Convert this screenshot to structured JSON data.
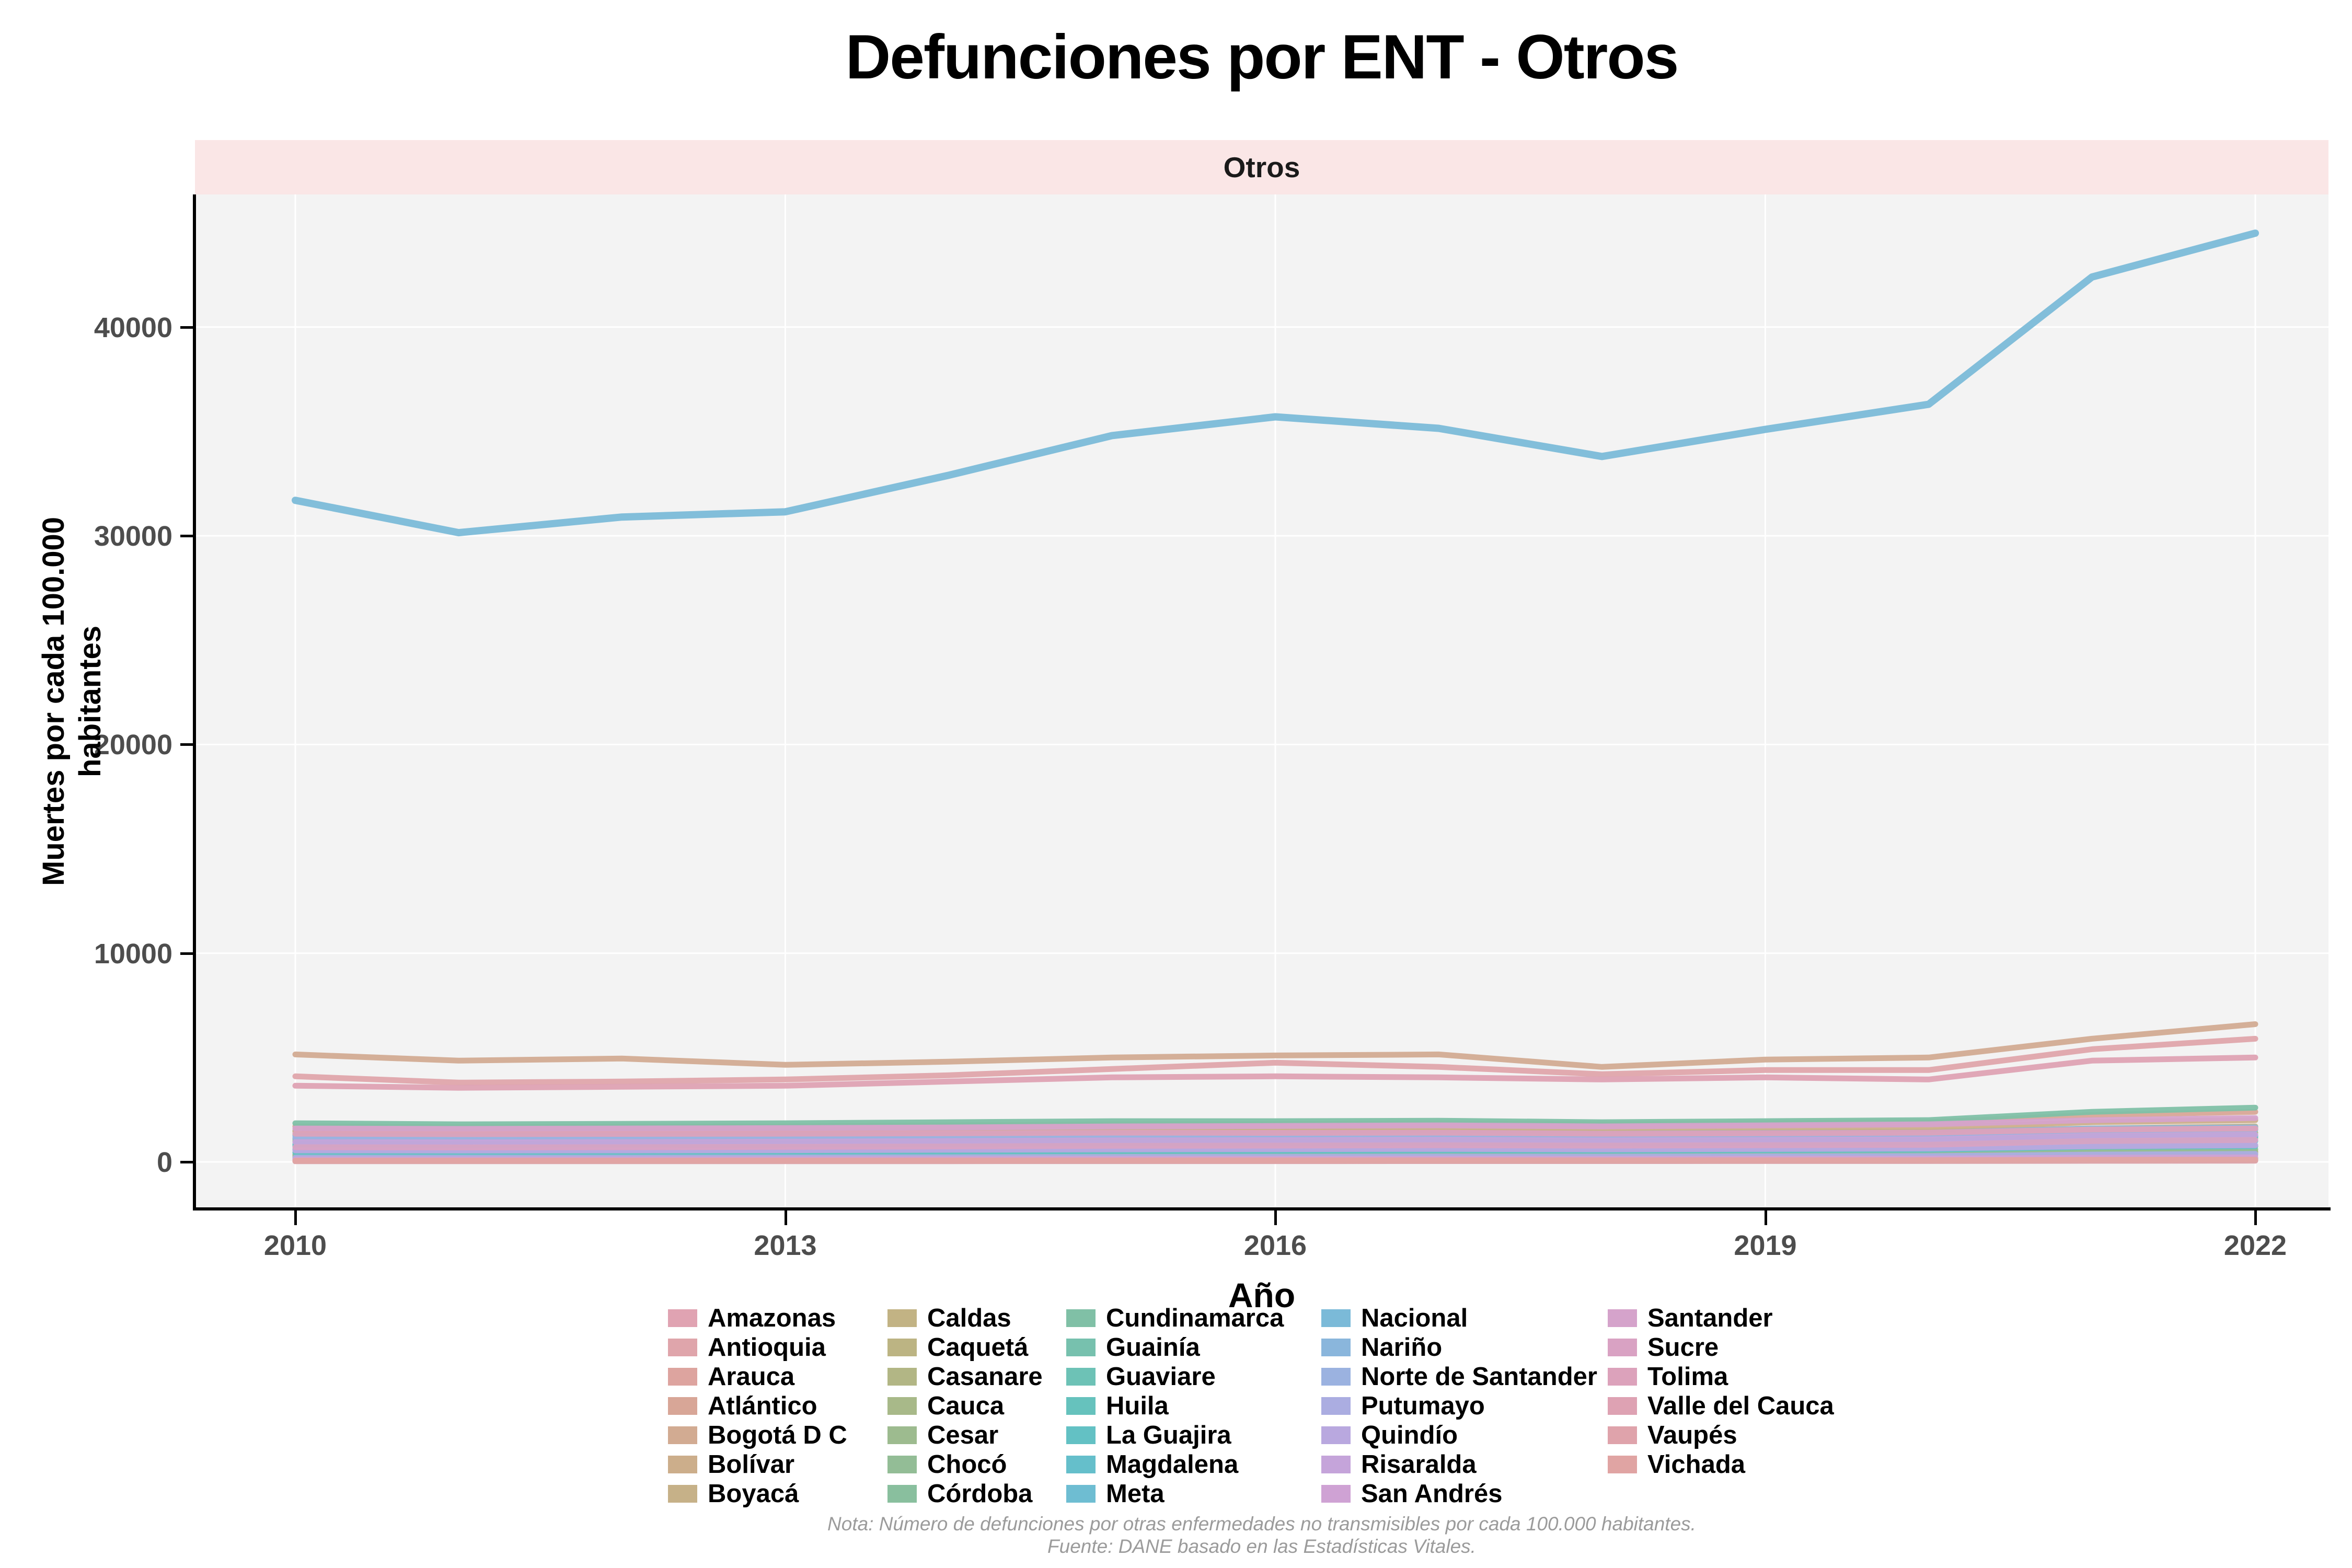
{
  "title": "Defunciones por ENT - Otros",
  "facet_label": "Otros",
  "x_axis": {
    "label": "Año",
    "ticks": [
      "2010",
      "2013",
      "2016",
      "2019",
      "2022"
    ],
    "tick_years": [
      2010,
      2013,
      2016,
      2019,
      2022
    ]
  },
  "y_axis": {
    "label_line1": "Muertes por cada 100.000",
    "label_line2": "habitantes",
    "ticks": [
      "0",
      "10000",
      "20000",
      "30000",
      "40000"
    ],
    "tick_values": [
      0,
      10000,
      20000,
      30000,
      40000
    ]
  },
  "caption": {
    "line1": "Nota: Número de defunciones por otras enfermedades no transmisibles por cada 100.000 habitantes.",
    "line2": "Fuente: DANE basado en las Estadísticas Vitales."
  },
  "colors": {
    "strip_bg": "#fae6e6",
    "panel_bg": "#f3f3f3",
    "grid": "#ffffff",
    "axis": "#000000",
    "tick_text": "#4d4d4d",
    "caption_text": "#9b9b9b"
  },
  "legend": {
    "columns": [
      [
        "Amazonas",
        "Antioquia",
        "Arauca",
        "Atlántico",
        "Bogotá D C",
        "Bolívar",
        "Boyacá"
      ],
      [
        "Caldas",
        "Caquetá",
        "Casanare",
        "Cauca",
        "Cesar",
        "Chocó",
        "Córdoba"
      ],
      [
        "Cundinamarca",
        "Guainía",
        "Guaviare",
        "Huila",
        "La Guajira",
        "Magdalena",
        "Meta"
      ],
      [
        "Nacional",
        "Nariño",
        "Norte de Santander",
        "Putumayo",
        "Quindío",
        "Risaralda",
        "San Andrés"
      ],
      [
        "Santander",
        "Sucre",
        "Tolima",
        "Valle del Cauca",
        "Vaupés",
        "Vichada"
      ]
    ]
  },
  "chart_data": {
    "type": "line",
    "title": "Defunciones por ENT - Otros",
    "facet": "Otros",
    "xlabel": "Año",
    "ylabel": "Muertes por cada 100.000 habitantes",
    "x": [
      2010,
      2011,
      2012,
      2013,
      2014,
      2015,
      2016,
      2017,
      2018,
      2019,
      2020,
      2021,
      2022
    ],
    "xlim": [
      2010,
      2022
    ],
    "ylim": [
      0,
      44500
    ],
    "grid": true,
    "legend_position": "bottom",
    "series": [
      {
        "name": "Amazonas",
        "color": "#e0a3b2",
        "values": [
          100,
          100,
          100,
          105,
          110,
          115,
          120,
          125,
          125,
          130,
          135,
          170,
          185
        ]
      },
      {
        "name": "Antioquia",
        "color": "#dfa5ab",
        "values": [
          4100,
          3800,
          3850,
          3950,
          4150,
          4450,
          4750,
          4550,
          4200,
          4400,
          4400,
          5400,
          5900
        ]
      },
      {
        "name": "Arauca",
        "color": "#dda49f",
        "values": [
          180,
          180,
          180,
          190,
          200,
          210,
          220,
          230,
          225,
          235,
          245,
          310,
          335
        ]
      },
      {
        "name": "Atlántico",
        "color": "#d8a697",
        "values": [
          1700,
          1660,
          1680,
          1700,
          1750,
          1800,
          1810,
          1850,
          1800,
          1850,
          1900,
          2250,
          2400
        ]
      },
      {
        "name": "Bogotá D C",
        "color": "#d2ab92",
        "values": [
          5150,
          4850,
          4950,
          4650,
          4800,
          5000,
          5100,
          5150,
          4550,
          4900,
          5000,
          5900,
          6600
        ]
      },
      {
        "name": "Bolívar",
        "color": "#ccae8b",
        "values": [
          1450,
          1430,
          1450,
          1480,
          1500,
          1550,
          1560,
          1580,
          1550,
          1600,
          1650,
          1900,
          2000
        ]
      },
      {
        "name": "Boyacá",
        "color": "#c6b188",
        "values": [
          1500,
          1460,
          1440,
          1420,
          1430,
          1450,
          1440,
          1450,
          1400,
          1420,
          1450,
          1600,
          1700
        ]
      },
      {
        "name": "Caldas",
        "color": "#c2b384",
        "values": [
          1320,
          1300,
          1300,
          1310,
          1330,
          1350,
          1340,
          1350,
          1300,
          1320,
          1350,
          1500,
          1550
        ]
      },
      {
        "name": "Caquetá",
        "color": "#bcb483",
        "values": [
          300,
          295,
          300,
          310,
          325,
          340,
          350,
          360,
          350,
          370,
          380,
          470,
          500
        ]
      },
      {
        "name": "Casanare",
        "color": "#b2b685",
        "values": [
          250,
          250,
          250,
          260,
          275,
          290,
          300,
          310,
          300,
          320,
          330,
          420,
          450
        ]
      },
      {
        "name": "Cauca",
        "color": "#a8b989",
        "values": [
          1000,
          990,
          1000,
          1020,
          1050,
          1100,
          1110,
          1130,
          1100,
          1130,
          1150,
          1350,
          1400
        ]
      },
      {
        "name": "Cesar",
        "color": "#9dbb8f",
        "values": [
          750,
          740,
          750,
          770,
          800,
          830,
          840,
          860,
          840,
          870,
          900,
          1100,
          1150
        ]
      },
      {
        "name": "Chocó",
        "color": "#93bd96",
        "values": [
          350,
          345,
          350,
          360,
          380,
          400,
          410,
          420,
          410,
          430,
          450,
          560,
          600
        ]
      },
      {
        "name": "Córdoba",
        "color": "#89bf9e",
        "values": [
          1100,
          1090,
          1100,
          1120,
          1150,
          1200,
          1220,
          1250,
          1230,
          1270,
          1300,
          1550,
          1650
        ]
      },
      {
        "name": "Cundinamarca",
        "color": "#80c0a6",
        "values": [
          1850,
          1800,
          1820,
          1850,
          1900,
          1950,
          1950,
          1970,
          1900,
          1950,
          2000,
          2400,
          2600
        ]
      },
      {
        "name": "Guainía",
        "color": "#77c1ae",
        "values": [
          40,
          40,
          40,
          42,
          44,
          47,
          49,
          51,
          50,
          52,
          54,
          68,
          75
        ]
      },
      {
        "name": "Guaviare",
        "color": "#6dc2b6",
        "values": [
          80,
          80,
          80,
          83,
          88,
          93,
          97,
          101,
          99,
          104,
          108,
          136,
          150
        ]
      },
      {
        "name": "Huila",
        "color": "#66c2bd",
        "values": [
          850,
          840,
          850,
          870,
          900,
          940,
          950,
          970,
          950,
          980,
          1000,
          1200,
          1250
        ]
      },
      {
        "name": "La Guajira",
        "color": "#63c1c4",
        "values": [
          450,
          445,
          450,
          470,
          490,
          520,
          530,
          550,
          540,
          560,
          580,
          720,
          750
        ]
      },
      {
        "name": "Magdalena",
        "color": "#65bfcb",
        "values": [
          800,
          790,
          800,
          820,
          850,
          880,
          890,
          910,
          890,
          920,
          950,
          1150,
          1200
        ]
      },
      {
        "name": "Meta",
        "color": "#6ebdd2",
        "values": [
          600,
          595,
          600,
          620,
          650,
          680,
          690,
          710,
          700,
          730,
          750,
          950,
          1000
        ]
      },
      {
        "name": "Nacional",
        "color": "#7bbad8",
        "values": [
          31700,
          30150,
          30900,
          31150,
          32900,
          34800,
          35700,
          35150,
          33800,
          35100,
          36300,
          42400,
          44500
        ]
      },
      {
        "name": "Nariño",
        "color": "#8ab6dc",
        "values": [
          1250,
          1230,
          1250,
          1270,
          1300,
          1350,
          1360,
          1380,
          1350,
          1380,
          1400,
          1600,
          1650
        ]
      },
      {
        "name": "Norte de Santander",
        "color": "#9bb2e0",
        "values": [
          1150,
          1130,
          1150,
          1170,
          1200,
          1250,
          1260,
          1280,
          1250,
          1280,
          1300,
          1500,
          1550
        ]
      },
      {
        "name": "Putumayo",
        "color": "#abade1",
        "values": [
          200,
          200,
          200,
          210,
          220,
          235,
          245,
          255,
          250,
          265,
          275,
          350,
          380
        ]
      },
      {
        "name": "Quindío",
        "color": "#b9a8df",
        "values": [
          550,
          545,
          550,
          560,
          580,
          600,
          610,
          620,
          600,
          620,
          640,
          750,
          800
        ]
      },
      {
        "name": "Risaralda",
        "color": "#c5a4da",
        "values": [
          950,
          940,
          950,
          970,
          1000,
          1030,
          1040,
          1060,
          1030,
          1050,
          1080,
          1250,
          1300
        ]
      },
      {
        "name": "San Andrés",
        "color": "#cfa2d4",
        "values": [
          120,
          120,
          120,
          125,
          132,
          140,
          145,
          150,
          148,
          155,
          160,
          200,
          215
        ]
      },
      {
        "name": "Santander",
        "color": "#d5a3cb",
        "values": [
          1600,
          1580,
          1600,
          1620,
          1650,
          1700,
          1720,
          1750,
          1700,
          1750,
          1800,
          2000,
          2100
        ]
      },
      {
        "name": "Sucre",
        "color": "#d9a2c3",
        "values": [
          700,
          690,
          700,
          720,
          740,
          770,
          780,
          800,
          780,
          800,
          820,
          1000,
          1050
        ]
      },
      {
        "name": "Tolima",
        "color": "#dca2bb",
        "values": [
          1350,
          1330,
          1340,
          1350,
          1370,
          1400,
          1390,
          1400,
          1350,
          1370,
          1400,
          1550,
          1600
        ]
      },
      {
        "name": "Valle del Cauca",
        "color": "#dea2b3",
        "values": [
          3650,
          3550,
          3600,
          3650,
          3850,
          4050,
          4100,
          4050,
          3950,
          4050,
          3950,
          4850,
          5000
        ]
      },
      {
        "name": "Vaupés",
        "color": "#dfa3ab",
        "values": [
          30,
          30,
          30,
          31,
          33,
          35,
          36,
          38,
          37,
          39,
          40,
          50,
          55
        ]
      },
      {
        "name": "Vichada",
        "color": "#e0a4a3",
        "values": [
          60,
          60,
          60,
          63,
          66,
          70,
          73,
          76,
          74,
          78,
          81,
          102,
          111
        ]
      }
    ]
  }
}
